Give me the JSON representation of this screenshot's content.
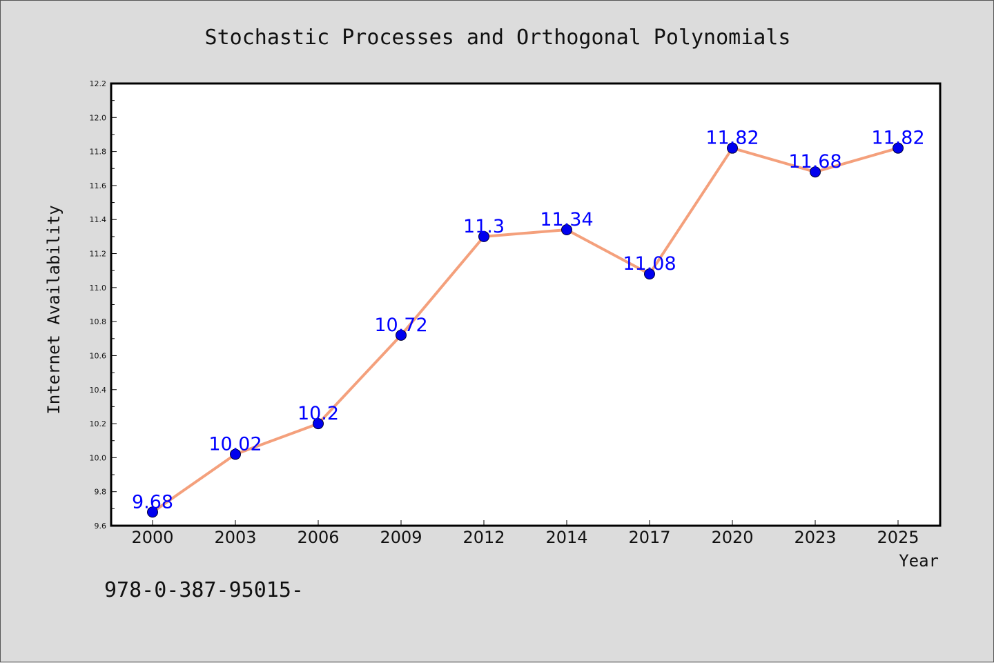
{
  "chart_data": {
    "type": "line",
    "title": "Stochastic Processes and Orthogonal Polynomials",
    "xlabel": "Year",
    "ylabel": "Internet Availability",
    "categories": [
      "2000",
      "2003",
      "2006",
      "2009",
      "2012",
      "2014",
      "2017",
      "2020",
      "2023",
      "2025"
    ],
    "series": [
      {
        "values": [
          9.68,
          10.02,
          10.2,
          10.72,
          11.3,
          11.34,
          11.08,
          11.82,
          11.68,
          11.82
        ],
        "labels": [
          "9.68",
          "10.02",
          "10.2",
          "10.72",
          "11.3",
          "11.34",
          "11.08",
          "11.82",
          "11.68",
          "11.82"
        ],
        "line_color": "#f4a07c",
        "marker_color": "#0000ee"
      }
    ],
    "ylim": [
      9.6,
      12.2
    ],
    "yticks": [
      "9.6",
      "9.8",
      "10.0",
      "10.2",
      "10.4",
      "10.6",
      "10.8",
      "11.0",
      "11.2",
      "11.4",
      "11.6",
      "11.8",
      "12.0",
      "12.2"
    ],
    "grid": false,
    "legend": false
  },
  "footer": {
    "text": "978-0-387-95015-"
  }
}
